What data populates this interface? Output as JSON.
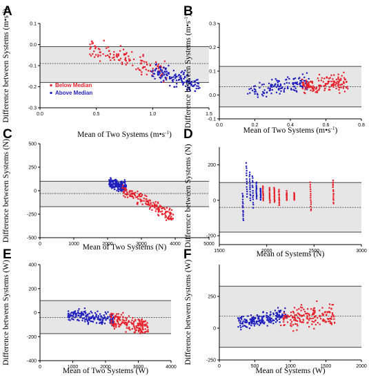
{
  "chart_data": [
    {
      "panel": "A",
      "type": "scatter",
      "xlabel": "Mean of Two Systems (m•s",
      "xlabel_sup": "-1",
      "xlabel_end": ")",
      "ylabel": "Difference between Systems (m•s",
      "ylabel_sup": "-1",
      "ylabel_end": ")",
      "xlim": [
        0.0,
        1.5
      ],
      "ylim": [
        -0.3,
        0.1
      ],
      "xticks": [
        "0.0",
        "0.5",
        "1.0",
        "1.5"
      ],
      "xtick_values": [
        0,
        0.5,
        1.0,
        1.5
      ],
      "yticks": [
        "-0.3",
        "-0.2",
        "-0.1",
        "0.0",
        "0.1"
      ],
      "ytick_values": [
        -0.3,
        -0.2,
        -0.1,
        0.0,
        0.1
      ],
      "limits": {
        "upper": -0.01,
        "mean": -0.09,
        "lower": -0.18
      },
      "legend": {
        "placement": "lower-left",
        "items": [
          {
            "label": "Below Median",
            "color": "#e8202a"
          },
          {
            "label": "Above Median",
            "color": "#1f1fbf"
          }
        ]
      },
      "series": [
        {
          "name": "Below Median",
          "color": "#e8202a",
          "cluster": {
            "x_range": [
              0.45,
              1.12
            ],
            "y_at_start": -0.02,
            "y_at_end": -0.13,
            "spread": 0.045,
            "count": 130
          }
        },
        {
          "name": "Above Median",
          "color": "#1f1fbf",
          "cluster": {
            "x_range": [
              1.0,
              1.42
            ],
            "y_at_start": -0.12,
            "y_at_end": -0.2,
            "spread": 0.045,
            "count": 150
          }
        }
      ]
    },
    {
      "panel": "B",
      "type": "scatter",
      "xlabel": "Mean of Two Systems (m•s",
      "xlabel_sup": "-1",
      "xlabel_end": ")",
      "ylabel": "Difference between Systems (m•s",
      "ylabel_sup": "-1",
      "ylabel_end": ")",
      "xlim": [
        0.0,
        0.8
      ],
      "ylim": [
        -0.1,
        0.3
      ],
      "xticks": [
        "0.0",
        "0.2",
        "0.4",
        "0.6",
        "0.8"
      ],
      "xtick_values": [
        0,
        0.2,
        0.4,
        0.6,
        0.8
      ],
      "yticks": [
        "-0.1",
        "0.0",
        "0.1",
        "0.2",
        "0.3"
      ],
      "ytick_values": [
        -0.1,
        0.0,
        0.1,
        0.2,
        0.3
      ],
      "limits": {
        "upper": 0.12,
        "mean": 0.035,
        "lower": -0.05
      },
      "series": [
        {
          "name": "Below Median",
          "color": "#1f1fbf",
          "cluster": {
            "x_range": [
              0.16,
              0.5
            ],
            "y_at_start": 0.02,
            "y_at_end": 0.05,
            "spread": 0.035,
            "count": 140
          }
        },
        {
          "name": "Above Median",
          "color": "#e8202a",
          "cluster": {
            "x_range": [
              0.46,
              0.72
            ],
            "y_at_start": 0.04,
            "y_at_end": 0.05,
            "spread": 0.04,
            "count": 150
          }
        }
      ]
    },
    {
      "panel": "C",
      "type": "scatter",
      "xlabel": "Mean of Two Systems (N)",
      "ylabel": "Difference between Systems (N)",
      "xlim": [
        0,
        5000
      ],
      "ylim": [
        -500,
        500
      ],
      "xticks": [
        "0",
        "1000",
        "2000",
        "3000",
        "4000",
        "5000"
      ],
      "xtick_values": [
        0,
        1000,
        2000,
        3000,
        4000,
        5000
      ],
      "yticks": [
        "-500",
        "-250",
        "0",
        "250",
        "500"
      ],
      "ytick_values": [
        -500,
        -250,
        0,
        250,
        500
      ],
      "limits": {
        "upper": 100,
        "mean": -30,
        "lower": -170
      },
      "series": [
        {
          "name": "Below Median",
          "color": "#1f1fbf",
          "cluster": {
            "x_range": [
              2050,
              2550
            ],
            "y_at_start": 80,
            "y_at_end": 40,
            "spread": 60,
            "count": 170
          }
        },
        {
          "name": "Above Median",
          "color": "#e8202a",
          "cluster": {
            "x_range": [
              2450,
              3950
            ],
            "y_at_start": 20,
            "y_at_end": -280,
            "spread": 75,
            "count": 170
          }
        }
      ]
    },
    {
      "panel": "D",
      "type": "scatter",
      "xlabel": "Mean of Systems (N)",
      "ylabel": "Difference between Systems (N)",
      "xlim": [
        1500,
        3000
      ],
      "ylim": [
        -250,
        300
      ],
      "xticks": [
        "1500",
        "2000",
        "2500",
        "3000"
      ],
      "xtick_values": [
        1500,
        2000,
        2500,
        3000
      ],
      "yticks": [
        "-200",
        "0",
        "200"
      ],
      "ytick_values": [
        -200,
        0,
        200
      ],
      "limits": {
        "upper": 100,
        "mean": -40,
        "lower": -180
      },
      "series": [
        {
          "name": "Below Median",
          "color": "#1f1fbf",
          "strands": [
            {
              "x": 1745,
              "y_top": 40,
              "y_bottom": -115,
              "slope": 0.35
            },
            {
              "x": 1785,
              "y_top": 210,
              "y_bottom": 20,
              "slope": 0.3
            },
            {
              "x": 1820,
              "y_top": 160,
              "y_bottom": 0,
              "slope": 0.35
            },
            {
              "x": 1850,
              "y_top": 140,
              "y_bottom": -40,
              "slope": 0.3
            },
            {
              "x": 1890,
              "y_top": 100,
              "y_bottom": 10,
              "slope": 0.3
            },
            {
              "x": 1935,
              "y_top": 70,
              "y_bottom": 0,
              "slope": 0.25
            }
          ]
        },
        {
          "name": "Above Median",
          "color": "#e8202a",
          "strands": [
            {
              "x": 1960,
              "y_top": 80,
              "y_bottom": 0,
              "slope": 0.3
            },
            {
              "x": 2030,
              "y_top": 70,
              "y_bottom": -10,
              "slope": 0.3
            },
            {
              "x": 2080,
              "y_top": 70,
              "y_bottom": -10,
              "slope": 0.3
            },
            {
              "x": 2130,
              "y_top": 60,
              "y_bottom": -30,
              "slope": 0.3
            },
            {
              "x": 2210,
              "y_top": 50,
              "y_bottom": 0,
              "slope": 0.3
            },
            {
              "x": 2290,
              "y_top": 40,
              "y_bottom": 0,
              "slope": 0.3
            },
            {
              "x": 2460,
              "y_top": 100,
              "y_bottom": -60,
              "slope": 0.3
            },
            {
              "x": 2700,
              "y_top": 110,
              "y_bottom": -20,
              "slope": 0.3
            }
          ]
        }
      ]
    },
    {
      "panel": "E",
      "type": "scatter",
      "xlabel": "Mean of Two Systems (W)",
      "ylabel": "Difference between Systems (W)",
      "xlim": [
        0,
        4000
      ],
      "ylim": [
        -400,
        400
      ],
      "xticks": [
        "0",
        "1000",
        "2000",
        "3000",
        "4000"
      ],
      "xtick_values": [
        0,
        1000,
        2000,
        3000,
        4000
      ],
      "yticks": [
        "-400",
        "-200",
        "0",
        "200",
        "400"
      ],
      "ytick_values": [
        -400,
        -200,
        0,
        200,
        400
      ],
      "limits": {
        "upper": 100,
        "mean": -40,
        "lower": -175
      },
      "series": [
        {
          "name": "Below Median",
          "color": "#1f1fbf",
          "cluster": {
            "x_range": [
              850,
              2250
            ],
            "y_at_start": -10,
            "y_at_end": -60,
            "spread": 60,
            "count": 170
          }
        },
        {
          "name": "Above Median",
          "color": "#e8202a",
          "cluster": {
            "x_range": [
              2150,
              3300
            ],
            "y_at_start": -60,
            "y_at_end": -120,
            "spread": 70,
            "count": 170
          }
        }
      ]
    },
    {
      "panel": "F",
      "type": "scatter",
      "xlabel": "Mean of Systems (W)",
      "ylabel": "Difference between Systems (W)",
      "xlim": [
        0,
        2000
      ],
      "ylim": [
        -250,
        500
      ],
      "xticks": [
        "0",
        "500",
        "1000",
        "1500",
        "2000"
      ],
      "xtick_values": [
        0,
        500,
        1000,
        1500,
        2000
      ],
      "yticks": [
        "-250",
        "0",
        "250"
      ],
      "ytick_values": [
        -250,
        0,
        250
      ],
      "limits": {
        "upper": 330,
        "mean": 95,
        "lower": -150
      },
      "series": [
        {
          "name": "Below Median",
          "color": "#1f1fbf",
          "cluster": {
            "x_range": [
              280,
              950
            ],
            "y_at_start": 40,
            "y_at_end": 110,
            "spread": 60,
            "count": 180
          }
        },
        {
          "name": "Above Median",
          "color": "#e8202a",
          "cluster": {
            "x_range": [
              880,
              1620
            ],
            "y_at_start": 80,
            "y_at_end": 110,
            "spread": 90,
            "count": 170
          }
        }
      ]
    }
  ]
}
